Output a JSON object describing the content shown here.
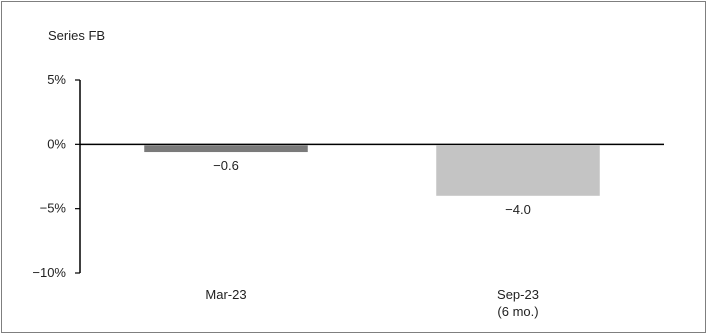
{
  "chart_data": {
    "type": "bar",
    "series_title": "Series FB",
    "categories": [
      "Mar-23",
      "Sep-23"
    ],
    "category_sublabels": [
      "",
      "(6 mo.)"
    ],
    "values": [
      -0.6,
      -4.0
    ],
    "data_labels": [
      "−0.6",
      "−4.0"
    ],
    "bar_colors": [
      "#7a7a7a",
      "#c4c4c4"
    ],
    "ylim": [
      -10,
      5
    ],
    "yticks": [
      5,
      0,
      -5,
      -10
    ],
    "ytick_labels": [
      "5%",
      "0%",
      "−5%",
      "−10%"
    ],
    "grid": false,
    "legend": "none"
  }
}
